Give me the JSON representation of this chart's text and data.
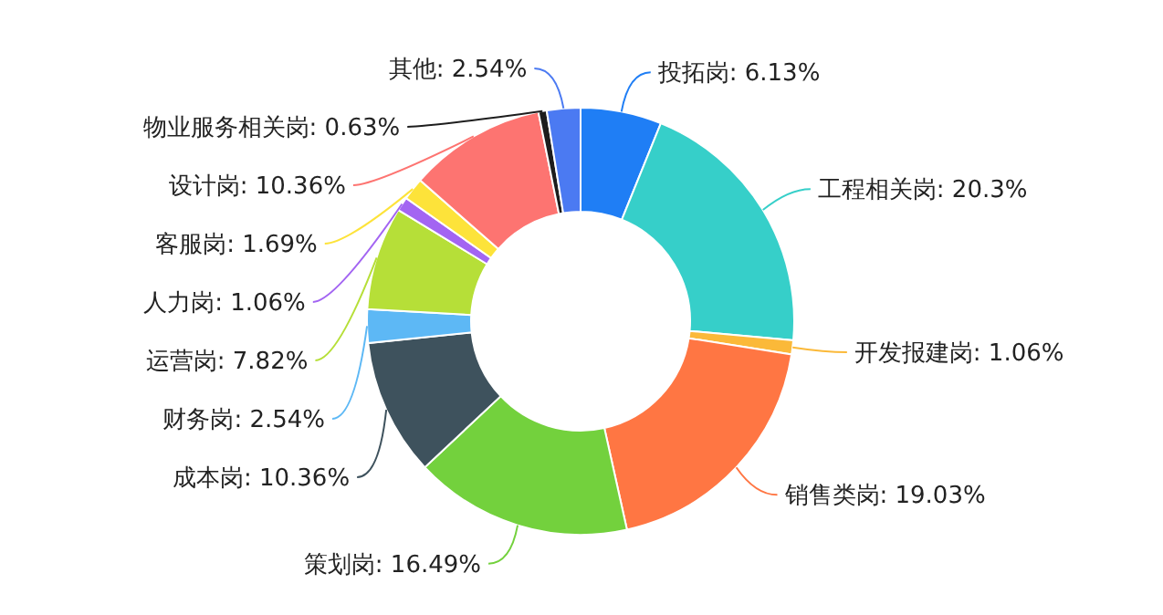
{
  "chart_data": {
    "type": "donut",
    "categories": [
      "投拓岗",
      "工程相关岗",
      "开发报建岗",
      "销售类岗",
      "策划岗",
      "成本岗",
      "财务岗",
      "运营岗",
      "人力岗",
      "客服岗",
      "设计岗",
      "物业服务相关岗",
      "其他"
    ],
    "values": [
      6.13,
      20.3,
      1.06,
      19.03,
      16.49,
      10.36,
      2.54,
      7.82,
      1.06,
      1.69,
      10.36,
      0.63,
      2.54
    ],
    "value_labels": [
      "6.13%",
      "20.3%",
      "1.06%",
      "19.03%",
      "16.49%",
      "10.36%",
      "2.54%",
      "7.82%",
      "1.06%",
      "1.69%",
      "10.36%",
      "0.63%",
      "2.54%"
    ],
    "colors": [
      "#1f7ef5",
      "#36cfc9",
      "#fbb939",
      "#ff7643",
      "#73d13d",
      "#3e525d",
      "#5db8f5",
      "#b6df38",
      "#a365f2",
      "#fde33a",
      "#fd7471",
      "#1d1d1d",
      "#4b7af2"
    ]
  }
}
